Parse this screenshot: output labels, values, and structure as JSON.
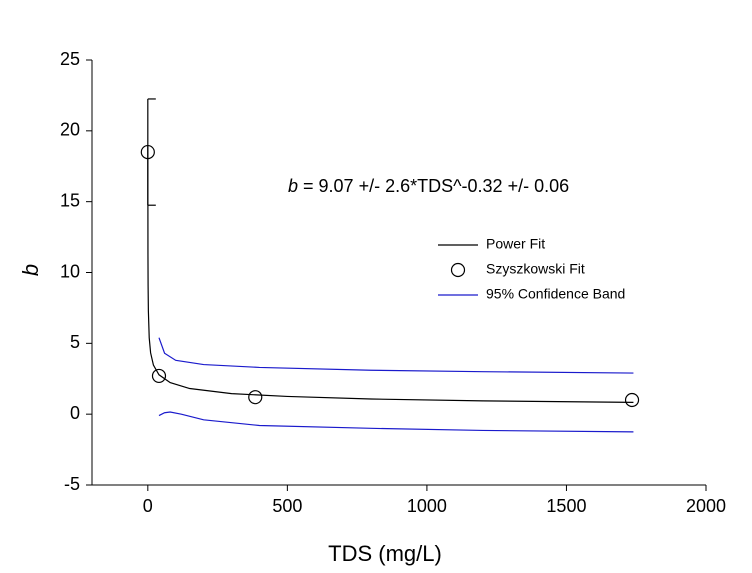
{
  "chart_data": {
    "type": "scatter",
    "xlabel": "TDS (mg/L)",
    "ylabel": "b",
    "annotation": {
      "variable": "b",
      "text": " = 9.07 +/- 2.6*TDS^-0.32 +/- 0.06"
    },
    "xlim": [
      -200,
      2000
    ],
    "ylim": [
      -5,
      25
    ],
    "xticks": [
      0,
      500,
      1000,
      1500,
      2000
    ],
    "yticks": [
      -5,
      0,
      5,
      10,
      15,
      20,
      25
    ],
    "grid": false,
    "legend": "right",
    "series": [
      {
        "name": "Power Fit",
        "color": "#000000",
        "kind": "line",
        "x": [
          0.1,
          0.5,
          1,
          2,
          5,
          10,
          20,
          40,
          80,
          150,
          300,
          500,
          800,
          1200,
          1740
        ],
        "values": [
          18.9,
          11.3,
          9.07,
          7.28,
          5.39,
          4.33,
          3.47,
          2.78,
          2.23,
          1.81,
          1.45,
          1.25,
          1.07,
          0.94,
          0.83
        ]
      },
      {
        "name": "Szyszkowski Fit",
        "color": "#000000",
        "kind": "marker",
        "x": [
          0,
          40,
          385,
          1735
        ],
        "values": [
          18.5,
          2.7,
          1.2,
          1.0
        ],
        "errors": [
          3.75,
          null,
          null,
          null
        ]
      },
      {
        "name": "95% Confidence Band",
        "color": "#1a1acc",
        "kind": "line",
        "x": [
          40,
          60,
          100,
          200,
          400,
          800,
          1200,
          1740,
          null,
          40,
          60,
          80,
          120,
          200,
          400,
          800,
          1200,
          1740
        ],
        "values": [
          5.4,
          4.3,
          3.8,
          3.5,
          3.3,
          3.1,
          3.0,
          2.9,
          null,
          -0.1,
          0.1,
          0.15,
          0.0,
          -0.4,
          -0.8,
          -1.0,
          -1.15,
          -1.25
        ]
      }
    ]
  }
}
